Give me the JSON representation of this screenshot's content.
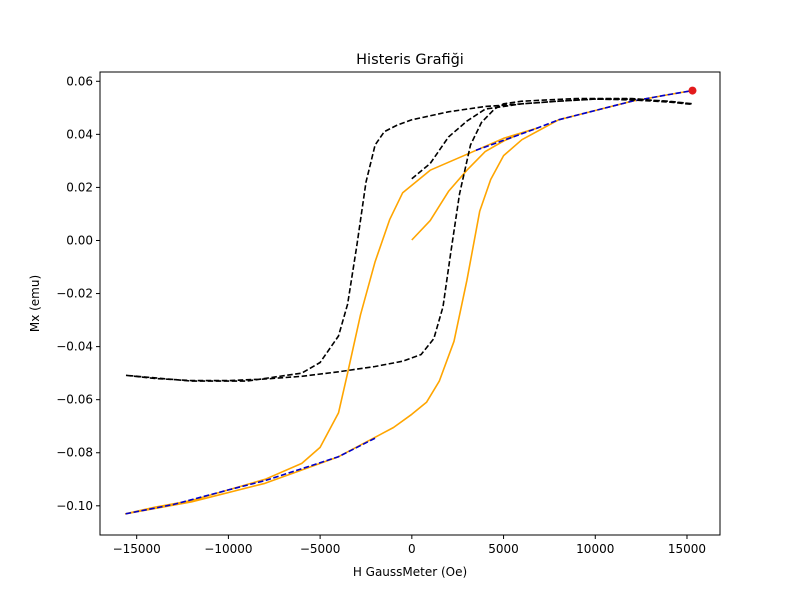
{
  "chart_data": {
    "type": "line",
    "title": "Histeris Grafiği",
    "xlabel": "H GaussMeter (Oe)",
    "ylabel": "Mx (emu)",
    "xlim": [
      -17000,
      16800
    ],
    "ylim": [
      -0.111,
      0.0635
    ],
    "x_ticks": [
      -15000,
      -10000,
      -5000,
      0,
      5000,
      10000,
      15000
    ],
    "x_tick_labels": [
      "−15000",
      "−10000",
      "−5000",
      "0",
      "5000",
      "10000",
      "15000"
    ],
    "y_ticks": [
      -0.1,
      -0.08,
      -0.06,
      -0.04,
      -0.02,
      0.0,
      0.02,
      0.04,
      0.06
    ],
    "y_tick_labels": [
      "−0.10",
      "−0.08",
      "−0.06",
      "−0.04",
      "−0.02",
      "0.00",
      "0.02",
      "0.04",
      "0.06"
    ],
    "grid": false,
    "legend": "none",
    "series": [
      {
        "style": "solid",
        "color": "#ffa500",
        "points": [
          [
            0,
            0.0002
          ],
          [
            1000,
            0.0075
          ],
          [
            2000,
            0.0185
          ],
          [
            3000,
            0.0265
          ],
          [
            4000,
            0.0335
          ],
          [
            5000,
            0.0375
          ],
          [
            6000,
            0.0405
          ],
          [
            6900,
            0.0425
          ],
          [
            6900,
            0.0425
          ],
          [
            5000,
            0.0385
          ],
          [
            3000,
            0.0325
          ],
          [
            1000,
            0.0265
          ],
          [
            -500,
            0.018
          ],
          [
            -1200,
            0.008
          ],
          [
            -2000,
            -0.008
          ],
          [
            -2800,
            -0.028
          ],
          [
            -3500,
            -0.05
          ],
          [
            -4000,
            -0.065
          ],
          [
            -5000,
            -0.078
          ],
          [
            -6000,
            -0.084
          ],
          [
            -8000,
            -0.09
          ],
          [
            -10000,
            -0.094
          ],
          [
            -12000,
            -0.098
          ],
          [
            -14000,
            -0.1005
          ],
          [
            -15600,
            -0.103
          ],
          [
            -15600,
            -0.103
          ],
          [
            -12000,
            -0.0985
          ],
          [
            -8000,
            -0.0915
          ],
          [
            -4000,
            -0.0815
          ],
          [
            -1000,
            -0.0705
          ],
          [
            0,
            -0.0655
          ],
          [
            800,
            -0.061
          ],
          [
            1500,
            -0.053
          ],
          [
            2300,
            -0.038
          ],
          [
            3000,
            -0.015
          ],
          [
            3700,
            0.011
          ],
          [
            4300,
            0.023
          ],
          [
            5000,
            0.032
          ],
          [
            6000,
            0.038
          ],
          [
            8000,
            0.0455
          ],
          [
            10000,
            0.049
          ],
          [
            12000,
            0.0525
          ],
          [
            14000,
            0.055
          ],
          [
            15300,
            0.0565
          ]
        ]
      },
      {
        "style": "dashed",
        "color": "#0000cc",
        "points": [
          [
            3500,
            0.034
          ],
          [
            6500,
            0.0415
          ],
          [
            8000,
            0.0455
          ],
          [
            10000,
            0.049
          ],
          [
            12000,
            0.0525
          ],
          [
            14000,
            0.055
          ],
          [
            15300,
            0.0565
          ]
        ]
      },
      {
        "style": "dashed",
        "color": "#0000cc",
        "points": [
          [
            -15600,
            -0.103
          ],
          [
            -13000,
            -0.0995
          ],
          [
            -10000,
            -0.094
          ],
          [
            -8000,
            -0.0905
          ],
          [
            -6000,
            -0.086
          ],
          [
            -4000,
            -0.0815
          ],
          [
            -2000,
            -0.0745
          ]
        ]
      },
      {
        "style": "dashed",
        "color": "#000000",
        "points": [
          [
            0,
            0.0233
          ],
          [
            1000,
            0.029
          ],
          [
            2000,
            0.039
          ],
          [
            3000,
            0.045
          ],
          [
            4000,
            0.0495
          ],
          [
            6000,
            0.0515
          ],
          [
            8000,
            0.0525
          ],
          [
            10000,
            0.0533
          ],
          [
            12000,
            0.0533
          ],
          [
            14000,
            0.0525
          ],
          [
            15300,
            0.0515
          ],
          [
            15300,
            0.0515
          ],
          [
            12000,
            0.0535
          ],
          [
            9000,
            0.0535
          ],
          [
            6000,
            0.0525
          ],
          [
            5000,
            0.0515
          ],
          [
            4500,
            0.0495
          ],
          [
            3800,
            0.0445
          ],
          [
            3200,
            0.036
          ],
          [
            2600,
            0.0175
          ],
          [
            2100,
            -0.0055
          ],
          [
            1700,
            -0.025
          ],
          [
            1200,
            -0.037
          ],
          [
            500,
            -0.043
          ],
          [
            -500,
            -0.0455
          ],
          [
            -2000,
            -0.0475
          ],
          [
            -4000,
            -0.0495
          ],
          [
            -6000,
            -0.0512
          ],
          [
            -8000,
            -0.0522
          ],
          [
            -10000,
            -0.0528
          ],
          [
            -12000,
            -0.0528
          ],
          [
            -14000,
            -0.052
          ],
          [
            -15600,
            -0.0508
          ],
          [
            -15600,
            -0.0508
          ],
          [
            -12000,
            -0.053
          ],
          [
            -9000,
            -0.053
          ],
          [
            -6000,
            -0.05
          ],
          [
            -5000,
            -0.046
          ],
          [
            -4000,
            -0.036
          ],
          [
            -3500,
            -0.024
          ],
          [
            -3000,
            -0.002
          ],
          [
            -2500,
            0.022
          ],
          [
            -2000,
            0.036
          ],
          [
            -1500,
            0.041
          ],
          [
            -800,
            0.0435
          ],
          [
            0,
            0.0455
          ],
          [
            2000,
            0.0485
          ],
          [
            4000,
            0.0505
          ],
          [
            6000,
            0.0515
          ],
          [
            8000,
            0.0525
          ],
          [
            10000,
            0.0533
          ],
          [
            12000,
            0.053
          ],
          [
            14000,
            0.0522
          ],
          [
            15300,
            0.0513
          ]
        ]
      }
    ],
    "marker": {
      "x": 15300,
      "y": 0.0565,
      "color": "#e31a1c"
    }
  }
}
